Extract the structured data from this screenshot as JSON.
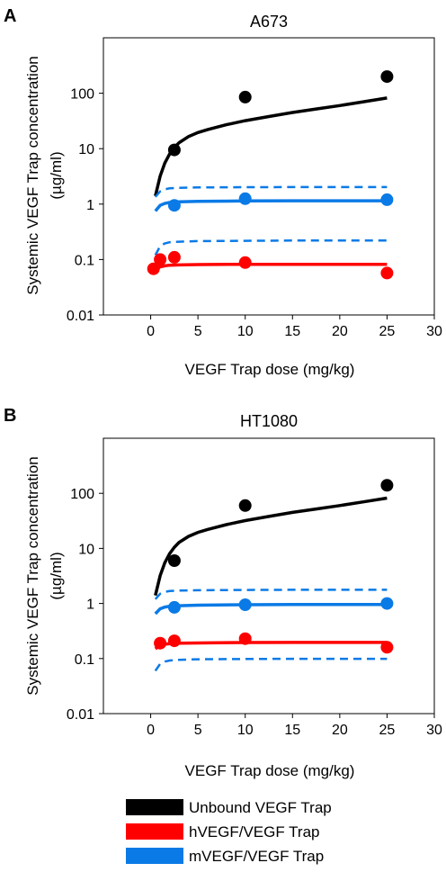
{
  "colors": {
    "unbound": "#000000",
    "human": "#ff0000",
    "mouse": "#0a7ae6"
  },
  "panels": [
    {
      "label": "A",
      "title": "A673",
      "ylabel_line1": "Systemic VEGF Trap concentration",
      "ylabel_line2": "(µg/ml)",
      "xlabel": "VEGF Trap dose (mg/kg)"
    },
    {
      "label": "B",
      "title": "HT1080",
      "ylabel_line1": "Systemic VEGF Trap concentration",
      "ylabel_line2": "(µg/ml)",
      "xlabel": "VEGF Trap dose (mg/kg)"
    }
  ],
  "legend": [
    {
      "label": "Unbound VEGF Trap",
      "color": "#000000"
    },
    {
      "label": "hVEGF/VEGF Trap",
      "color": "#ff0000"
    },
    {
      "label": "mVEGF/VEGF Trap",
      "color": "#0a7ae6"
    }
  ],
  "chart_data": [
    {
      "type": "scatter",
      "title": "A673",
      "xlabel": "VEGF Trap dose (mg/kg)",
      "ylabel": "Systemic VEGF Trap concentration (µg/ml)",
      "xlim": [
        -5,
        30
      ],
      "ylim": [
        0.01,
        1000
      ],
      "yscale": "log",
      "xticks": [
        0,
        5,
        10,
        15,
        20,
        25,
        30
      ],
      "xtick_labels": [
        "0",
        "5",
        "10",
        "15",
        "20",
        "25",
        "30"
      ],
      "yticks": [
        0.01,
        0.1,
        1,
        10,
        100
      ],
      "ytick_labels": [
        "0.01",
        "0.1",
        "1",
        "10",
        "100"
      ],
      "grid": false,
      "series": [
        {
          "name": "Unbound VEGF Trap",
          "color": "#000000",
          "kind": "points",
          "x": [
            2.5,
            10,
            25
          ],
          "y": [
            9.5,
            85,
            200
          ]
        },
        {
          "name": "Unbound VEGF Trap",
          "color": "#000000",
          "kind": "line",
          "x": [
            0.5,
            1,
            1.5,
            2,
            2.5,
            3,
            4,
            5,
            6,
            8,
            10,
            12.5,
            15,
            17.5,
            20,
            22.5,
            25
          ],
          "y": [
            1.4,
            3.2,
            5.5,
            8.0,
            10.5,
            12.8,
            16.5,
            19.5,
            22.0,
            27.0,
            32.0,
            38.0,
            45.0,
            52.0,
            60.0,
            70.0,
            82.0
          ]
        },
        {
          "name": "mVEGF/VEGF Trap",
          "color": "#0a7ae6",
          "kind": "points",
          "x": [
            2.5,
            10,
            25
          ],
          "y": [
            0.95,
            1.25,
            1.2
          ]
        },
        {
          "name": "mVEGF/VEGF Trap",
          "color": "#0a7ae6",
          "kind": "line",
          "x": [
            0.5,
            1,
            1.5,
            2,
            3,
            5,
            10,
            15,
            20,
            25
          ],
          "y": [
            0.75,
            0.95,
            1.03,
            1.07,
            1.1,
            1.12,
            1.14,
            1.15,
            1.15,
            1.15
          ]
        },
        {
          "name": "mVEGF/VEGF Trap",
          "color": "#0a7ae6",
          "kind": "dashed",
          "x": [
            0.5,
            1,
            1.5,
            2,
            3,
            5,
            10,
            15,
            20,
            25
          ],
          "y": [
            1.35,
            1.7,
            1.85,
            1.92,
            1.97,
            2.0,
            2.02,
            2.03,
            2.03,
            2.03
          ]
        },
        {
          "name": "mVEGF/VEGF Trap",
          "color": "#0a7ae6",
          "kind": "dashed",
          "x": [
            0.5,
            1,
            1.5,
            2,
            3,
            5,
            10,
            15,
            20,
            25
          ],
          "y": [
            0.12,
            0.175,
            0.195,
            0.205,
            0.21,
            0.215,
            0.218,
            0.22,
            0.22,
            0.22
          ]
        },
        {
          "name": "hVEGF/VEGF Trap",
          "color": "#ff0000",
          "kind": "points",
          "x": [
            0.3,
            1,
            2.5,
            10,
            25
          ],
          "y": [
            0.068,
            0.1,
            0.11,
            0.088,
            0.057
          ]
        },
        {
          "name": "hVEGF/VEGF Trap",
          "color": "#ff0000",
          "kind": "line",
          "x": [
            0.5,
            1,
            1.5,
            2,
            3,
            5,
            10,
            15,
            20,
            25
          ],
          "y": [
            0.065,
            0.074,
            0.077,
            0.079,
            0.08,
            0.081,
            0.082,
            0.082,
            0.082,
            0.082
          ]
        }
      ]
    },
    {
      "type": "scatter",
      "title": "HT1080",
      "xlabel": "VEGF Trap dose (mg/kg)",
      "ylabel": "Systemic VEGF Trap concentration (µg/ml)",
      "xlim": [
        -5,
        30
      ],
      "ylim": [
        0.01,
        1000
      ],
      "yscale": "log",
      "xticks": [
        0,
        5,
        10,
        15,
        20,
        25,
        30
      ],
      "xtick_labels": [
        "0",
        "5",
        "10",
        "15",
        "20",
        "25",
        "30"
      ],
      "yticks": [
        0.01,
        0.1,
        1,
        10,
        100
      ],
      "ytick_labels": [
        "0.01",
        "0.1",
        "1",
        "10",
        "100"
      ],
      "grid": false,
      "series": [
        {
          "name": "Unbound VEGF Trap",
          "color": "#000000",
          "kind": "points",
          "x": [
            2.5,
            10,
            25
          ],
          "y": [
            6.0,
            60,
            140
          ]
        },
        {
          "name": "Unbound VEGF Trap",
          "color": "#000000",
          "kind": "line",
          "x": [
            0.5,
            1,
            1.5,
            2,
            2.5,
            3,
            4,
            5,
            6,
            8,
            10,
            12.5,
            15,
            17.5,
            20,
            22.5,
            25
          ],
          "y": [
            1.4,
            3.2,
            5.5,
            8.0,
            10.5,
            12.8,
            16.5,
            19.5,
            22.0,
            27.0,
            32.0,
            38.0,
            45.0,
            52.0,
            60.0,
            70.0,
            82.0
          ]
        },
        {
          "name": "mVEGF/VEGF Trap",
          "color": "#0a7ae6",
          "kind": "points",
          "x": [
            2.5,
            10,
            25
          ],
          "y": [
            0.85,
            0.95,
            1.0
          ]
        },
        {
          "name": "mVEGF/VEGF Trap",
          "color": "#0a7ae6",
          "kind": "line",
          "x": [
            0.5,
            1,
            1.5,
            2,
            3,
            5,
            10,
            15,
            20,
            25
          ],
          "y": [
            0.65,
            0.8,
            0.86,
            0.89,
            0.91,
            0.93,
            0.95,
            0.96,
            0.96,
            0.96
          ]
        },
        {
          "name": "mVEGF/VEGF Trap",
          "color": "#0a7ae6",
          "kind": "dashed",
          "x": [
            0.5,
            1,
            1.5,
            2,
            3,
            5,
            10,
            15,
            20,
            25
          ],
          "y": [
            1.2,
            1.5,
            1.62,
            1.68,
            1.72,
            1.74,
            1.76,
            1.77,
            1.77,
            1.77
          ]
        },
        {
          "name": "mVEGF/VEGF Trap",
          "color": "#0a7ae6",
          "kind": "dashed",
          "x": [
            0.5,
            1,
            1.5,
            2,
            3,
            5,
            10,
            15,
            20,
            25
          ],
          "y": [
            0.06,
            0.08,
            0.088,
            0.092,
            0.095,
            0.097,
            0.098,
            0.099,
            0.099,
            0.099
          ]
        },
        {
          "name": "hVEGF/VEGF Trap",
          "color": "#ff0000",
          "kind": "points",
          "x": [
            1,
            2.5,
            10,
            25
          ],
          "y": [
            0.19,
            0.21,
            0.23,
            0.16
          ]
        },
        {
          "name": "hVEGF/VEGF Trap",
          "color": "#ff0000",
          "kind": "line",
          "x": [
            0.5,
            1,
            1.5,
            2,
            3,
            5,
            10,
            15,
            20,
            25
          ],
          "y": [
            0.15,
            0.175,
            0.182,
            0.186,
            0.19,
            0.192,
            0.195,
            0.196,
            0.196,
            0.196
          ]
        }
      ]
    }
  ]
}
